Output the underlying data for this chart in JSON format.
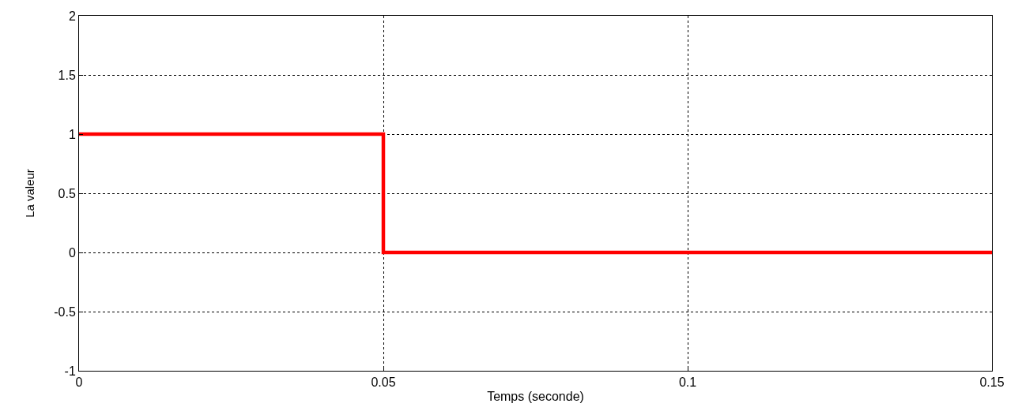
{
  "chart_data": {
    "type": "step",
    "xlabel": "Temps (seconde)",
    "ylabel": "La valeur",
    "x": [
      0,
      0.05,
      0.15
    ],
    "series": [
      {
        "color": "#ff0000",
        "values": [
          1,
          0,
          0
        ]
      }
    ],
    "xlim": [
      0,
      0.15
    ],
    "xticks": [
      0,
      0.05,
      0.1,
      0.15
    ],
    "ylim": [
      -1,
      2
    ],
    "yticks": [
      -1,
      -0.5,
      0,
      0.5,
      1,
      1.5,
      2
    ],
    "grid": true,
    "line_style": "solid",
    "marker": "none"
  }
}
